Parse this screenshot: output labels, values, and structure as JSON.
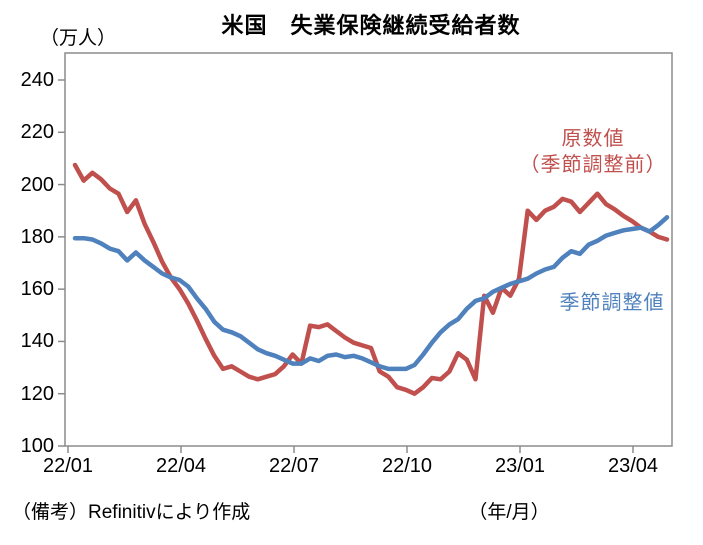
{
  "title": "米国　失業保険継続受給者数",
  "y_axis_unit": "（万人）",
  "x_axis_unit": "（年/月）",
  "source_note": "（備考）Refinitivにより作成",
  "legend": {
    "raw_line1": "原数値",
    "raw_line2": "（季節調整前）",
    "sa": "季節調整値"
  },
  "colors": {
    "raw_series": "#C0504D",
    "sa_series": "#4F81BD",
    "axis": "#8C8C8C",
    "text": "#000000",
    "background": "#FFFFFF"
  },
  "chart_data": {
    "type": "line",
    "title": "米国　失業保険継続受給者数",
    "ylabel": "（万人）",
    "xlabel": "（年/月）",
    "ylim": [
      100,
      240
    ],
    "ytick_step": 20,
    "ytick_labels": [
      "240",
      "220",
      "200",
      "180",
      "160",
      "140",
      "120",
      "100"
    ],
    "x_tick_labels": [
      "22/01",
      "22/04",
      "22/07",
      "22/10",
      "23/01",
      "23/04"
    ],
    "x_frequency": "weekly",
    "grid": false,
    "legend_position": "inline-annotations",
    "series": [
      {
        "name": "原数値（季節調整前）",
        "color": "#C0504D",
        "values": [
          207.5,
          201.5,
          204.5,
          202,
          198.5,
          196.5,
          189.5,
          194,
          185,
          178,
          170.5,
          164.5,
          160,
          154.5,
          148,
          141,
          134.5,
          129.5,
          130.5,
          128.5,
          126.5,
          125.5,
          126.5,
          127.5,
          130.5,
          135,
          131.5,
          146,
          145.5,
          146.5,
          144,
          141.5,
          139.5,
          138.5,
          137.5,
          128.5,
          126.5,
          122.5,
          121.5,
          120,
          122.5,
          126,
          125.5,
          128.5,
          135.5,
          133,
          125.5,
          157.5,
          151,
          160.5,
          157.5,
          164,
          190,
          186.5,
          190,
          191.5,
          194.5,
          193.5,
          189.5,
          193,
          196.5,
          192.5,
          190.5,
          188,
          186,
          183.5,
          182,
          180,
          179
        ]
      },
      {
        "name": "季節調整値",
        "color": "#4F81BD",
        "values": [
          179.5,
          179.5,
          179,
          177.5,
          175.5,
          174.5,
          171,
          174,
          171,
          168.5,
          166,
          164.5,
          163.5,
          161,
          156.5,
          152.5,
          147.5,
          144.5,
          143.5,
          142,
          139.5,
          137,
          135.5,
          134.5,
          133,
          131.5,
          131.5,
          133.5,
          132.5,
          134.5,
          135,
          134,
          134.5,
          133.5,
          132,
          130.5,
          129.5,
          129.5,
          129.5,
          131,
          135,
          139.5,
          143.5,
          146.5,
          148.5,
          152.5,
          155.5,
          156.5,
          159,
          160.5,
          162,
          163,
          164,
          166,
          167.5,
          168.5,
          172,
          174.5,
          173.5,
          177,
          178.5,
          180.5,
          181.5,
          182.5,
          183,
          183.5,
          182,
          184.5,
          187.5
        ]
      }
    ]
  }
}
